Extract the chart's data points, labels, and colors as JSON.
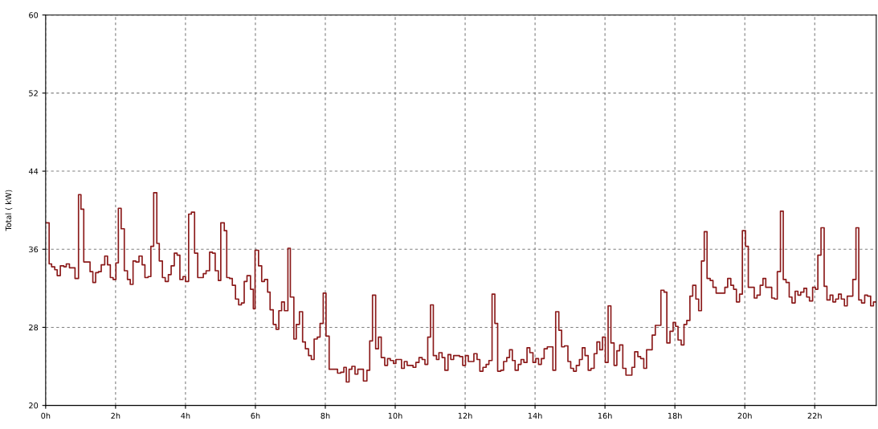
{
  "chart_data": {
    "type": "step",
    "ylabel": "Total ( kW)",
    "xlim": [
      0,
      23.76
    ],
    "ylim": [
      20,
      60
    ],
    "xticks": [
      {
        "value": 0,
        "label": "0h"
      },
      {
        "value": 2,
        "label": "2h"
      },
      {
        "value": 4,
        "label": "4h"
      },
      {
        "value": 6,
        "label": "6h"
      },
      {
        "value": 8,
        "label": "8h"
      },
      {
        "value": 10,
        "label": "10h"
      },
      {
        "value": 12,
        "label": "12h"
      },
      {
        "value": 14,
        "label": "14h"
      },
      {
        "value": 16,
        "label": "16h"
      },
      {
        "value": 18,
        "label": "18h"
      },
      {
        "value": 20,
        "label": "20h"
      },
      {
        "value": 22,
        "label": "22h"
      }
    ],
    "yticks": [
      20,
      28,
      36,
      44,
      52,
      60
    ],
    "grid": true,
    "line_style": "solid",
    "marker": "none",
    "series": [
      {
        "color": "#8b1a1a",
        "x": [
          0,
          0.1,
          0.17,
          0.26,
          0.33,
          0.42,
          0.52,
          0.59,
          0.68,
          0.84,
          0.94,
          1.01,
          1.09,
          1.27,
          1.35,
          1.43,
          1.51,
          1.59,
          1.69,
          1.77,
          1.85,
          1.93,
          2.01,
          2.08,
          2.16,
          2.25,
          2.34,
          2.42,
          2.5,
          2.58,
          2.67,
          2.76,
          2.84,
          2.93,
          3.01,
          3.09,
          3.18,
          3.25,
          3.34,
          3.42,
          3.51,
          3.59,
          3.68,
          3.76,
          3.84,
          3.93,
          4.0,
          4.09,
          4.17,
          4.26,
          4.35,
          4.43,
          4.51,
          4.59,
          4.69,
          4.77,
          4.85,
          4.94,
          5.01,
          5.11,
          5.18,
          5.26,
          5.34,
          5.43,
          5.52,
          5.6,
          5.68,
          5.76,
          5.86,
          5.94,
          5.99,
          6.09,
          6.18,
          6.26,
          6.35,
          6.42,
          6.51,
          6.59,
          6.67,
          6.75,
          6.83,
          6.93,
          7.0,
          7.1,
          7.17,
          7.26,
          7.35,
          7.43,
          7.52,
          7.6,
          7.68,
          7.77,
          7.85,
          7.94,
          8.02,
          8.11,
          8.27,
          8.35,
          8.44,
          8.53,
          8.6,
          8.68,
          8.76,
          8.85,
          8.93,
          9.02,
          9.09,
          9.19,
          9.27,
          9.35,
          9.44,
          9.52,
          9.6,
          9.7,
          9.78,
          9.86,
          9.95,
          10.02,
          10.1,
          10.18,
          10.26,
          10.34,
          10.42,
          10.51,
          10.59,
          10.68,
          10.77,
          10.85,
          10.93,
          11.01,
          11.09,
          11.18,
          11.25,
          11.34,
          11.42,
          11.51,
          11.59,
          11.67,
          11.76,
          11.84,
          11.93,
          12.01,
          12.09,
          12.25,
          12.34,
          12.42,
          12.51,
          12.6,
          12.68,
          12.77,
          12.85,
          12.93,
          13.02,
          13.1,
          13.19,
          13.27,
          13.35,
          13.43,
          13.52,
          13.6,
          13.68,
          13.77,
          13.85,
          13.94,
          14.02,
          14.1,
          14.18,
          14.26,
          14.35,
          14.51,
          14.59,
          14.68,
          14.76,
          14.84,
          14.94,
          15.02,
          15.1,
          15.18,
          15.27,
          15.35,
          15.43,
          15.52,
          15.6,
          15.69,
          15.77,
          15.85,
          15.93,
          16.01,
          16.09,
          16.17,
          16.26,
          16.34,
          16.42,
          16.51,
          16.6,
          16.77,
          16.85,
          16.94,
          17.02,
          17.11,
          17.19,
          17.35,
          17.44,
          17.6,
          17.69,
          17.77,
          17.86,
          17.95,
          18.02,
          18.09,
          18.18,
          18.26,
          18.34,
          18.43,
          18.51,
          18.6,
          18.68,
          18.76,
          18.84,
          18.92,
          19.01,
          19.09,
          19.18,
          19.43,
          19.51,
          19.6,
          19.68,
          19.76,
          19.85,
          19.93,
          20.02,
          20.1,
          20.18,
          20.27,
          20.35,
          20.44,
          20.52,
          20.6,
          20.69,
          20.77,
          20.85,
          20.93,
          21.02,
          21.1,
          21.18,
          21.27,
          21.35,
          21.44,
          21.52,
          21.6,
          21.69,
          21.77,
          21.85,
          21.94,
          22.02,
          22.09,
          22.18,
          22.27,
          22.35,
          22.44,
          22.52,
          22.6,
          22.68,
          22.76,
          22.85,
          22.93,
          23.09,
          23.18,
          23.26,
          23.34,
          23.43,
          23.51,
          23.6,
          23.68,
          23.76
        ],
        "values": [
          38.7,
          34.5,
          34.2,
          33.9,
          33.3,
          34.3,
          34.2,
          34.5,
          34.1,
          33.0,
          41.6,
          40.1,
          34.7,
          33.7,
          32.6,
          33.6,
          33.7,
          34.4,
          35.3,
          34.4,
          33.1,
          32.9,
          34.6,
          40.2,
          38.1,
          33.8,
          32.9,
          32.4,
          34.8,
          34.7,
          35.3,
          34.4,
          33.1,
          33.2,
          36.3,
          41.8,
          36.6,
          34.8,
          33.1,
          32.7,
          33.4,
          34.3,
          35.6,
          35.4,
          32.9,
          33.2,
          32.7,
          39.6,
          39.8,
          35.6,
          33.1,
          33.1,
          33.5,
          33.8,
          35.7,
          35.6,
          33.8,
          32.8,
          38.7,
          37.9,
          33.1,
          33.0,
          32.3,
          30.9,
          30.3,
          30.5,
          32.7,
          33.3,
          31.9,
          29.9,
          35.9,
          34.3,
          32.7,
          32.9,
          31.6,
          29.8,
          28.3,
          27.8,
          29.7,
          30.6,
          29.7,
          36.1,
          31.1,
          26.8,
          28.3,
          29.6,
          26.5,
          25.8,
          25.1,
          24.7,
          26.8,
          27.0,
          28.4,
          31.5,
          27.1,
          23.7,
          23.7,
          23.3,
          23.4,
          23.9,
          22.4,
          23.7,
          24.0,
          23.2,
          23.7,
          23.7,
          22.5,
          23.6,
          26.6,
          31.3,
          25.8,
          27.0,
          24.9,
          24.1,
          24.8,
          24.6,
          24.3,
          24.7,
          24.7,
          23.8,
          24.5,
          24.1,
          24.1,
          23.9,
          24.4,
          24.9,
          24.7,
          24.2,
          27.0,
          30.3,
          25.1,
          24.7,
          25.4,
          24.9,
          23.6,
          25.2,
          24.7,
          25.1,
          25.1,
          25.0,
          24.1,
          25.1,
          24.5,
          25.3,
          24.7,
          23.5,
          23.9,
          24.2,
          24.6,
          31.4,
          28.4,
          23.5,
          23.6,
          24.5,
          24.9,
          25.7,
          24.6,
          23.6,
          24.2,
          24.7,
          24.4,
          25.9,
          25.4,
          24.4,
          24.8,
          24.2,
          24.8,
          25.8,
          26.0,
          23.6,
          29.6,
          27.7,
          26.0,
          26.1,
          24.5,
          23.8,
          23.5,
          24.1,
          24.7,
          25.9,
          25.1,
          23.6,
          23.8,
          25.3,
          26.5,
          25.7,
          27.0,
          24.4,
          30.2,
          26.4,
          24.1,
          25.6,
          26.2,
          23.8,
          23.1,
          23.9,
          25.5,
          25.0,
          24.8,
          23.8,
          25.7,
          27.2,
          28.2,
          31.8,
          31.6,
          26.4,
          27.6,
          28.5,
          28.1,
          26.7,
          26.2,
          28.3,
          28.7,
          31.2,
          32.3,
          30.9,
          29.7,
          34.8,
          37.8,
          33.0,
          32.8,
          32.1,
          31.5,
          32.1,
          33.0,
          32.3,
          31.9,
          30.6,
          31.4,
          37.9,
          36.3,
          32.1,
          32.1,
          31.0,
          31.3,
          32.3,
          33.0,
          32.1,
          32.1,
          31.0,
          30.9,
          33.7,
          39.9,
          32.9,
          32.6,
          31.1,
          30.5,
          31.7,
          31.3,
          31.6,
          32.0,
          31.1,
          30.7,
          32.1,
          31.9,
          35.4,
          38.2,
          32.2,
          30.8,
          31.3,
          30.6,
          30.9,
          31.4,
          30.9,
          30.2,
          31.2,
          32.9,
          38.2,
          30.8,
          30.5,
          31.3,
          31.2,
          30.2,
          30.6,
          30.6
        ]
      }
    ]
  }
}
